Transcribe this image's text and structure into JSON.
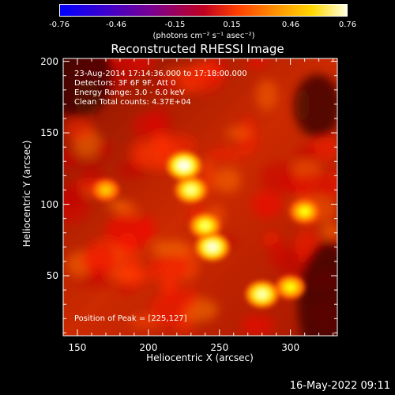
{
  "colorbar": {
    "ticks": [
      "-0.76",
      "-0.46",
      "-0.15",
      "0.15",
      "0.46",
      "0.76"
    ],
    "units": "(photons cm⁻² s⁻¹ asec⁻²)",
    "range": [
      -0.76,
      0.76
    ]
  },
  "info": {
    "time": "23-Aug-2014 17:14:36.000 to 17:18:00.000",
    "detectors": "Detectors: 3F 6F 9F, Att 0",
    "energy": "Energy Range: 3.0 - 6.0 keV",
    "method": "Clean    Total counts: 4.37E+04",
    "peak": "Position of Peak = [225,127]"
  },
  "footer": {
    "stamp": "16-May-2022 09:11"
  },
  "chart_data": {
    "type": "heatmap",
    "title": "Reconstructed RHESSI Image",
    "xlabel": "Heliocentric X (arcsec)",
    "ylabel": "Heliocentric Y (arcsec)",
    "xlim": [
      140,
      333
    ],
    "ylim": [
      8,
      202
    ],
    "x_ticks": [
      150,
      200,
      250,
      300
    ],
    "x_tick_labels": [
      "150",
      "200",
      "250",
      "300"
    ],
    "y_ticks": [
      50,
      100,
      150,
      200
    ],
    "y_tick_labels": [
      "50",
      "100",
      "150",
      "200"
    ],
    "colormap": "hot",
    "peak_position": [
      225,
      127
    ],
    "sources": [
      {
        "x": 225,
        "y": 127,
        "peak": 0.76
      },
      {
        "x": 230,
        "y": 110,
        "peak": 0.62
      },
      {
        "x": 245,
        "y": 70,
        "peak": 0.72
      },
      {
        "x": 240,
        "y": 85,
        "peak": 0.55
      },
      {
        "x": 280,
        "y": 37,
        "peak": 0.66
      },
      {
        "x": 300,
        "y": 42,
        "peak": 0.45
      },
      {
        "x": 310,
        "y": 95,
        "peak": 0.45
      },
      {
        "x": 170,
        "y": 110,
        "peak": 0.33
      }
    ]
  }
}
